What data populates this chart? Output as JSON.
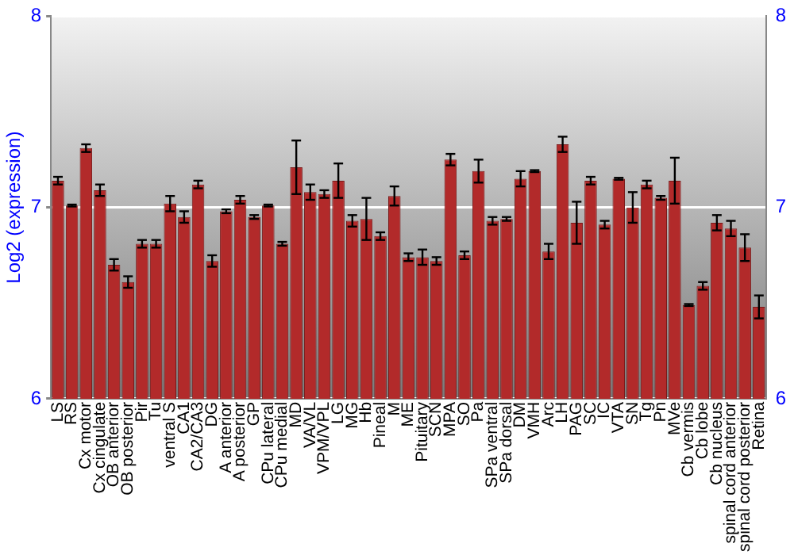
{
  "chart_data": {
    "type": "bar",
    "ylabel": "Log2 (expression)",
    "categories": [
      "LS",
      "RS",
      "Cx motor",
      "Cx cingulate",
      "OB anterior",
      "OB posterior",
      "Pir",
      "Tu",
      "ventral S",
      "CA1",
      "CA2/CA3",
      "DG",
      "A anterior",
      "A posterior",
      "GP",
      "CPu lateral",
      "CPu medial",
      "MD",
      "VA/VL",
      "VPM/VPL",
      "LG",
      "MG",
      "Hb",
      "Pineal",
      "M",
      "ME",
      "Pituitary",
      "SCN",
      "MPA",
      "SO",
      "Pa",
      "SPa ventral",
      "SPa dorsal",
      "DM",
      "VMH",
      "Arc",
      "LH",
      "PAG",
      "SC",
      "IC",
      "VTA",
      "SN",
      "Tg",
      "Pn",
      "MVe",
      "Cb vermis",
      "Cb lobe",
      "Cb nucleus",
      "spinal cord anterior",
      "spinal cord posterior",
      "Retina"
    ],
    "values": [
      7.14,
      7.01,
      7.31,
      7.09,
      6.7,
      6.61,
      6.81,
      6.81,
      7.02,
      6.95,
      7.12,
      6.72,
      6.98,
      7.04,
      6.95,
      7.01,
      6.81,
      7.21,
      7.08,
      7.07,
      7.14,
      6.93,
      6.94,
      6.85,
      7.06,
      6.74,
      6.74,
      6.72,
      7.25,
      6.75,
      7.19,
      6.93,
      6.94,
      7.15,
      7.19,
      6.77,
      7.33,
      6.92,
      7.14,
      6.91,
      7.15,
      7.0,
      7.12,
      7.05,
      7.14,
      6.49,
      6.59,
      6.92,
      6.89,
      6.79,
      6.48
    ],
    "errors": [
      0.02,
      0.005,
      0.02,
      0.03,
      0.03,
      0.03,
      0.02,
      0.02,
      0.04,
      0.03,
      0.02,
      0.03,
      0.01,
      0.02,
      0.01,
      0.005,
      0.01,
      0.14,
      0.04,
      0.02,
      0.09,
      0.03,
      0.11,
      0.02,
      0.05,
      0.02,
      0.04,
      0.02,
      0.03,
      0.02,
      0.06,
      0.02,
      0.01,
      0.04,
      0.005,
      0.04,
      0.04,
      0.11,
      0.02,
      0.02,
      0.005,
      0.08,
      0.02,
      0.01,
      0.12,
      0.005,
      0.02,
      0.04,
      0.04,
      0.07,
      0.06
    ],
    "color": "#b22a2a",
    "ylim": [
      6,
      8
    ],
    "yticks": [
      6,
      7,
      8
    ],
    "y2lim": [
      6,
      8
    ],
    "y2ticks": [
      6,
      7,
      8
    ],
    "grid": "y",
    "legend": false
  }
}
